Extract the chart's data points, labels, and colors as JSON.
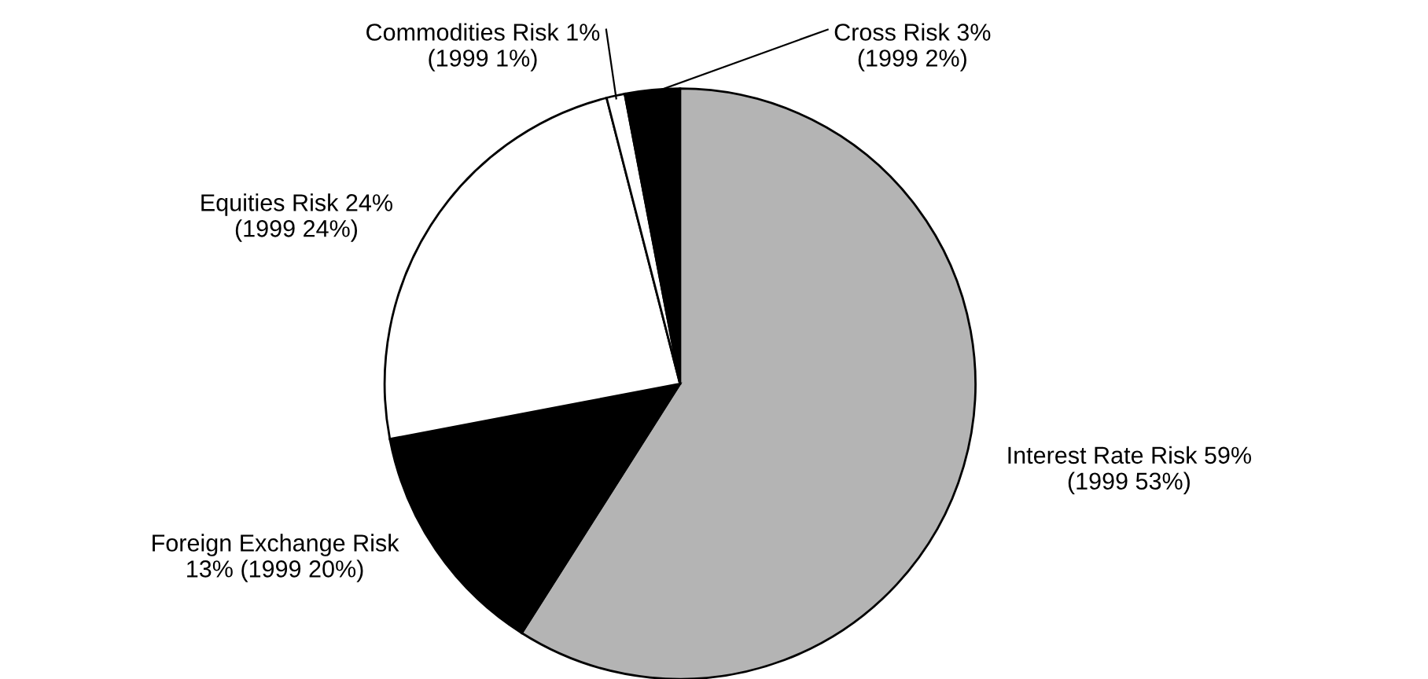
{
  "chart_data": {
    "type": "pie",
    "categories": [
      "Interest Rate Risk 59%\n(1999 53%)",
      "Foreign Exchange Risk\n13% (1999 20%)",
      "Equities Risk 24%\n(1999 24%)",
      "Commodities Risk 1%\n(1999 1%)",
      "Cross Risk 3%\n(1999 2%)"
    ],
    "values": [
      59,
      13,
      24,
      1,
      3
    ],
    "colors": [
      "#b4b4b4",
      "#000000",
      "#ffffff",
      "#ffffff",
      "#000000"
    ]
  }
}
